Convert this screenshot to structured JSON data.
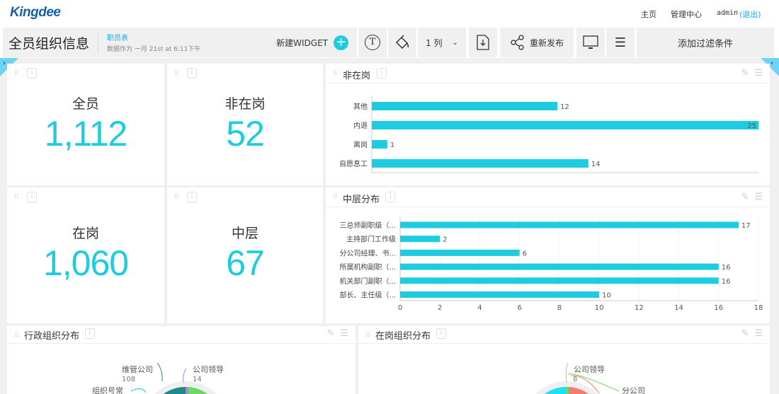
{
  "header": {
    "logo": "Kingdee",
    "nav": [
      "主页",
      "管理中心"
    ],
    "user": "admin",
    "logout": "(退出)"
  },
  "toolbar": {
    "title": "全员组织信息",
    "source": "职员表",
    "updated": "数据作为 一月 21st at 6:11下午",
    "new_widget": "新建WIDGET",
    "columns": "1 列",
    "republish": "重新发布",
    "add_filter": "添加过滤条件"
  },
  "kpis": [
    {
      "label": "全员",
      "value": "1,112"
    },
    {
      "label": "非在岗",
      "value": "52"
    },
    {
      "label": "在岗",
      "value": "1,060"
    },
    {
      "label": "中层",
      "value": "67"
    }
  ],
  "accent": "#1ecbe1",
  "chart_data": [
    {
      "type": "bar",
      "orientation": "horizontal",
      "title": "非在岗",
      "categories": [
        "其他",
        "内退",
        "离岗",
        "自愿息工"
      ],
      "values": [
        12,
        25,
        1,
        14
      ],
      "xlim": [
        0,
        25
      ],
      "grid": false
    },
    {
      "type": "bar",
      "orientation": "horizontal",
      "title": "中层分布",
      "categories": [
        "三总师副职级（...",
        "主持部门工作级",
        "分公司经理、书...",
        "所属机构副职（...",
        "机关部门副职（...",
        "部长、主任级（..."
      ],
      "values": [
        17,
        2,
        6,
        16,
        16,
        10
      ],
      "xlim": [
        0,
        18
      ],
      "xticks": [
        0,
        2,
        4,
        6,
        8,
        10,
        12,
        14,
        16,
        18
      ],
      "grid": true
    },
    {
      "type": "pie",
      "title": "行政组织分布",
      "labels": [
        {
          "name": "维管公司",
          "value": "108"
        },
        {
          "name": "公司领导",
          "value": "14"
        },
        {
          "name": "组织号常",
          "value": ""
        }
      ]
    },
    {
      "type": "pie",
      "title": "在岗组织分布",
      "labels": [
        {
          "name": "公司领导",
          "value": "8"
        },
        {
          "name": "分公司",
          "value": ""
        }
      ]
    }
  ]
}
